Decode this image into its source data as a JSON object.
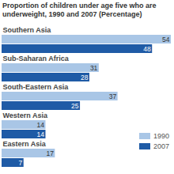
{
  "chart_data": {
    "type": "bar",
    "orientation": "horizontal",
    "title": "Proportion of children under age five who are underweight, 1990 and 2007 (Percentage)",
    "categories": [
      "Southern Asia",
      "Sub-Saharan Africa",
      "South-Eastern Asia",
      "Western Asia",
      "Eastern Asia"
    ],
    "series": [
      {
        "name": "1990",
        "color": "#a9c6e6",
        "values": [
          54,
          31,
          37,
          14,
          17
        ]
      },
      {
        "name": "2007",
        "color": "#1f5ba6",
        "values": [
          48,
          28,
          25,
          14,
          7
        ]
      }
    ],
    "xlim": [
      0,
      54
    ],
    "data_labels": true,
    "tick_labels": false,
    "legend": "lower right"
  }
}
